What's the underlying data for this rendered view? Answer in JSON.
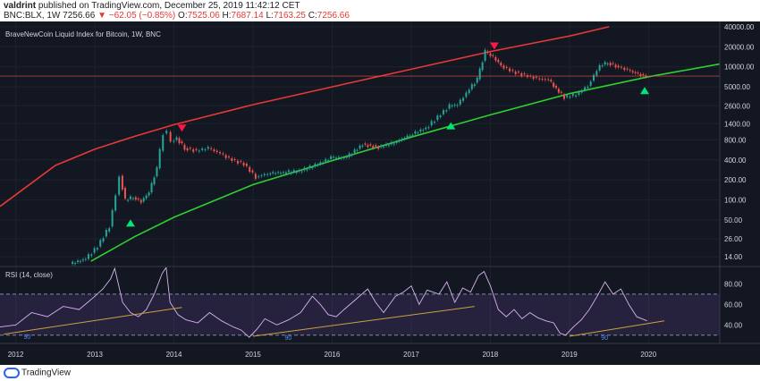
{
  "header": {
    "user": "valdrint",
    "published_text": "published on TradingView.com, December 25, 2019 11:42:12 CET",
    "symbol": "BNC:BLX, 1W",
    "last": "7256.66",
    "change": "−62.05 (−0.85%)",
    "open": "7525.06",
    "high": "7687.14",
    "low": "7163.25",
    "close": "7256.66",
    "o_label": "O:",
    "h_label": "H:",
    "l_label": "L:",
    "c_label": "C:"
  },
  "footer": {
    "brand": "TradingView"
  },
  "chart_data": [
    {
      "type": "line",
      "title": "BraveNewCoin Liquid Index for Bitcoin, 1W, BNC",
      "yscale": "log",
      "y_ticks": [
        "40000.00",
        "20000.00",
        "10000.00",
        "5000.00",
        "2600.00",
        "1400.00",
        "800.00",
        "400.00",
        "200.00",
        "100.00",
        "50.00",
        "26.00",
        "14.00"
      ],
      "x_ticks": [
        "2012",
        "2013",
        "2014",
        "2015",
        "2016",
        "2017",
        "2018",
        "2019",
        "2020"
      ],
      "last_price_label": "7256.66",
      "colors": {
        "up": "#26a69a",
        "down": "#ef5350",
        "resistance": "#e53935",
        "support": "#2fcf2f",
        "arrow_up": "#00e676",
        "arrow_down": "#ff1744"
      },
      "price": {
        "x": [
          2012.7,
          2012.9,
          2013.05,
          2013.2,
          2013.28,
          2013.33,
          2013.4,
          2013.5,
          2013.6,
          2013.7,
          2013.8,
          2013.88,
          2013.93,
          2013.98,
          2014.05,
          2014.15,
          2014.3,
          2014.45,
          2014.6,
          2014.75,
          2014.9,
          2015.05,
          2015.2,
          2015.4,
          2015.6,
          2015.8,
          2016.0,
          2016.2,
          2016.4,
          2016.6,
          2016.8,
          2017.0,
          2017.2,
          2017.35,
          2017.5,
          2017.6,
          2017.75,
          2017.85,
          2017.95,
          2018.05,
          2018.15,
          2018.3,
          2018.45,
          2018.6,
          2018.75,
          2018.88,
          2018.95,
          2019.1,
          2019.25,
          2019.4,
          2019.5,
          2019.6,
          2019.75,
          2019.85,
          2019.98
        ],
        "y": [
          11,
          13,
          20,
          40,
          120,
          230,
          100,
          110,
          95,
          130,
          300,
          1000,
          1050,
          750,
          850,
          600,
          550,
          600,
          500,
          400,
          350,
          220,
          250,
          260,
          270,
          330,
          430,
          440,
          680,
          620,
          720,
          950,
          1200,
          1750,
          2600,
          2700,
          4600,
          6500,
          17000,
          14000,
          10500,
          8500,
          7500,
          6700,
          6400,
          4200,
          3500,
          3800,
          5200,
          10500,
          11500,
          10400,
          9000,
          8000,
          7256
        ]
      },
      "resistance": {
        "x": [
          2011.8,
          2012.5,
          2013.0,
          2013.5,
          2014.0,
          2015.0,
          2016.0,
          2017.0,
          2018.0,
          2019.0,
          2019.5
        ],
        "y": [
          80,
          330,
          580,
          900,
          1350,
          2700,
          5000,
          9200,
          17000,
          29000,
          40000
        ]
      },
      "support": {
        "x": [
          2012.95,
          2013.5,
          2014.0,
          2015.0,
          2016.0,
          2017.0,
          2018.0,
          2019.0,
          2020.0,
          2020.9
        ],
        "y": [
          12,
          28,
          55,
          170,
          390,
          880,
          1900,
          3950,
          7100,
          11000
        ]
      },
      "arrows_up": [
        {
          "x": 2013.45,
          "y": 45
        },
        {
          "x": 2017.5,
          "y": 1300
        },
        {
          "x": 2019.95,
          "y": 4400
        }
      ],
      "arrows_down": [
        {
          "x": 2014.1,
          "y": 1200
        },
        {
          "x": 2018.05,
          "y": 20500
        }
      ]
    },
    {
      "type": "line",
      "title": "RSI (14, close)",
      "y_ticks": [
        "80.00",
        "60.00",
        "40.00"
      ],
      "levels": {
        "upper": 70,
        "lower": 30
      },
      "ylim": [
        22,
        96
      ],
      "rsi": {
        "x": [
          2011.8,
          2012.0,
          2012.2,
          2012.4,
          2012.6,
          2012.8,
          2013.0,
          2013.1,
          2013.2,
          2013.25,
          2013.35,
          2013.45,
          2013.55,
          2013.65,
          2013.75,
          2013.85,
          2013.9,
          2013.95,
          2014.05,
          2014.15,
          2014.3,
          2014.45,
          2014.6,
          2014.75,
          2014.85,
          2014.95,
          2015.05,
          2015.15,
          2015.3,
          2015.45,
          2015.6,
          2015.75,
          2015.85,
          2015.95,
          2016.05,
          2016.15,
          2016.3,
          2016.45,
          2016.55,
          2016.65,
          2016.8,
          2016.9,
          2017.0,
          2017.1,
          2017.2,
          2017.35,
          2017.45,
          2017.55,
          2017.65,
          2017.75,
          2017.85,
          2017.92,
          2018.0,
          2018.1,
          2018.2,
          2018.3,
          2018.4,
          2018.5,
          2018.6,
          2018.7,
          2018.8,
          2018.88,
          2018.95,
          2019.05,
          2019.15,
          2019.25,
          2019.35,
          2019.45,
          2019.55,
          2019.65,
          2019.75,
          2019.85,
          2019.98
        ],
        "y": [
          38,
          40,
          52,
          48,
          58,
          55,
          68,
          75,
          85,
          95,
          62,
          52,
          48,
          55,
          70,
          90,
          96,
          62,
          50,
          45,
          42,
          52,
          44,
          38,
          35,
          28,
          36,
          46,
          40,
          45,
          52,
          68,
          60,
          50,
          48,
          55,
          65,
          75,
          62,
          52,
          68,
          72,
          78,
          60,
          74,
          70,
          82,
          62,
          76,
          72,
          88,
          92,
          78,
          55,
          48,
          55,
          46,
          52,
          47,
          44,
          42,
          32,
          30,
          38,
          45,
          55,
          68,
          82,
          70,
          75,
          60,
          48,
          44
        ]
      },
      "trendlines": [
        {
          "x1": 2011.85,
          "y1": 31,
          "x2": 2014.1,
          "y2": 57
        },
        {
          "x1": 2015.0,
          "y1": 29,
          "x2": 2017.8,
          "y2": 58
        },
        {
          "x1": 2019.0,
          "y1": 29,
          "x2": 2020.2,
          "y2": 44
        }
      ],
      "divergence_marks": [
        {
          "x": 2012.1,
          "y": 29,
          "label": "90"
        },
        {
          "x": 2015.4,
          "y": 28,
          "label": "90"
        },
        {
          "x": 2019.4,
          "y": 28,
          "label": "90"
        }
      ]
    }
  ]
}
